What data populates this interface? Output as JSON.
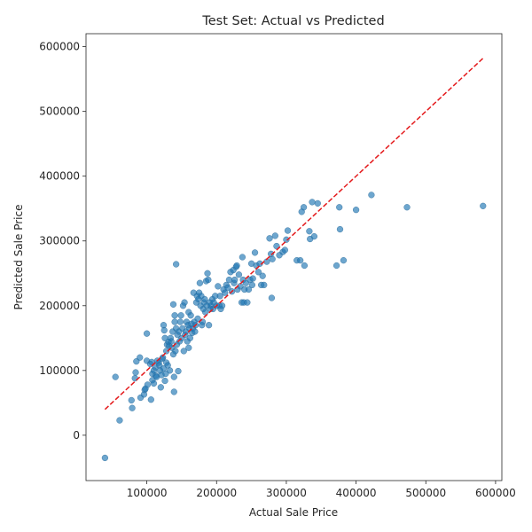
{
  "chart_data": {
    "type": "scatter",
    "title": "Test Set: Actual vs Predicted",
    "xlabel": "Actual Sale Price",
    "ylabel": "Predicted Sale Price",
    "xlim": [
      12800,
      609000
    ],
    "ylim": [
      -70000,
      620000
    ],
    "xticks": [
      100000,
      200000,
      300000,
      400000,
      500000,
      600000
    ],
    "yticks": [
      0,
      100000,
      200000,
      300000,
      400000,
      500000,
      600000
    ],
    "xtick_labels": [
      "100000",
      "200000",
      "300000",
      "400000",
      "500000",
      "600000"
    ],
    "ytick_labels": [
      "0",
      "100000",
      "200000",
      "300000",
      "400000",
      "500000",
      "600000"
    ],
    "grid": false,
    "reference_line": {
      "from": [
        40000,
        40000
      ],
      "to": [
        582000,
        582000
      ],
      "color": "#e41a1c",
      "style": "dashed"
    },
    "point_color": "#1f77b4",
    "points": [
      [
        40000,
        -35000
      ],
      [
        61000,
        23000
      ],
      [
        55000,
        90000
      ],
      [
        78000,
        54000
      ],
      [
        79000,
        42000
      ],
      [
        83000,
        88000
      ],
      [
        84000,
        97000
      ],
      [
        85000,
        114000
      ],
      [
        90000,
        120000
      ],
      [
        91000,
        58000
      ],
      [
        96000,
        63000
      ],
      [
        97000,
        70000
      ],
      [
        98000,
        72000
      ],
      [
        100000,
        157000
      ],
      [
        100000,
        115000
      ],
      [
        101000,
        78000
      ],
      [
        105000,
        110000
      ],
      [
        106000,
        55000
      ],
      [
        107000,
        113000
      ],
      [
        108000,
        85000
      ],
      [
        108000,
        95000
      ],
      [
        110000,
        100000
      ],
      [
        110000,
        80000
      ],
      [
        112000,
        105000
      ],
      [
        113000,
        92000
      ],
      [
        114000,
        90000
      ],
      [
        115000,
        115000
      ],
      [
        117000,
        112000
      ],
      [
        118000,
        108000
      ],
      [
        119000,
        100000
      ],
      [
        120000,
        74000
      ],
      [
        121000,
        93000
      ],
      [
        122000,
        118000
      ],
      [
        123000,
        120000
      ],
      [
        124000,
        103000
      ],
      [
        124000,
        170000
      ],
      [
        125000,
        162000
      ],
      [
        126000,
        150000
      ],
      [
        126000,
        84000
      ],
      [
        127000,
        95000
      ],
      [
        128000,
        112000
      ],
      [
        128000,
        130000
      ],
      [
        129000,
        140000
      ],
      [
        130000,
        108000
      ],
      [
        131000,
        144000
      ],
      [
        132000,
        138000
      ],
      [
        133000,
        100000
      ],
      [
        134000,
        150000
      ],
      [
        135000,
        145000
      ],
      [
        136000,
        135000
      ],
      [
        137000,
        160000
      ],
      [
        138000,
        202000
      ],
      [
        138000,
        125000
      ],
      [
        139000,
        90000
      ],
      [
        139000,
        67000
      ],
      [
        140000,
        185000
      ],
      [
        140000,
        175000
      ],
      [
        141000,
        130000
      ],
      [
        142000,
        264000
      ],
      [
        142000,
        165000
      ],
      [
        143000,
        140000
      ],
      [
        144000,
        155000
      ],
      [
        145000,
        99000
      ],
      [
        146000,
        160000
      ],
      [
        147000,
        145000
      ],
      [
        148000,
        175000
      ],
      [
        149000,
        185000
      ],
      [
        150000,
        150000
      ],
      [
        151000,
        165000
      ],
      [
        152000,
        200000
      ],
      [
        153000,
        130000
      ],
      [
        154000,
        205000
      ],
      [
        155000,
        155000
      ],
      [
        156000,
        160000
      ],
      [
        157000,
        175000
      ],
      [
        158000,
        145000
      ],
      [
        159000,
        170000
      ],
      [
        160000,
        190000
      ],
      [
        160000,
        135000
      ],
      [
        161000,
        165000
      ],
      [
        162000,
        150000
      ],
      [
        163000,
        185000
      ],
      [
        164000,
        172000
      ],
      [
        165000,
        158000
      ],
      [
        166000,
        165000
      ],
      [
        167000,
        220000
      ],
      [
        168000,
        175000
      ],
      [
        169000,
        160000
      ],
      [
        170000,
        170000
      ],
      [
        171000,
        205000
      ],
      [
        172000,
        215000
      ],
      [
        173000,
        180000
      ],
      [
        174000,
        210000
      ],
      [
        175000,
        220000
      ],
      [
        176000,
        235000
      ],
      [
        177000,
        200000
      ],
      [
        178000,
        215000
      ],
      [
        179000,
        170000
      ],
      [
        180000,
        175000
      ],
      [
        181000,
        195000
      ],
      [
        182000,
        205000
      ],
      [
        183000,
        210000
      ],
      [
        184000,
        190000
      ],
      [
        185000,
        238000
      ],
      [
        186000,
        200000
      ],
      [
        187000,
        250000
      ],
      [
        188000,
        240000
      ],
      [
        189000,
        170000
      ],
      [
        190000,
        205000
      ],
      [
        191000,
        195000
      ],
      [
        192000,
        200000
      ],
      [
        194000,
        210000
      ],
      [
        195000,
        195000
      ],
      [
        196000,
        205000
      ],
      [
        198000,
        215000
      ],
      [
        200000,
        200000
      ],
      [
        202000,
        230000
      ],
      [
        204000,
        200000
      ],
      [
        205000,
        215000
      ],
      [
        206000,
        195000
      ],
      [
        208000,
        200000
      ],
      [
        210000,
        225000
      ],
      [
        212000,
        220000
      ],
      [
        214000,
        232000
      ],
      [
        216000,
        228000
      ],
      [
        218000,
        240000
      ],
      [
        220000,
        252000
      ],
      [
        222000,
        222000
      ],
      [
        224000,
        255000
      ],
      [
        225000,
        235000
      ],
      [
        226000,
        240000
      ],
      [
        228000,
        260000
      ],
      [
        229000,
        262000
      ],
      [
        230000,
        225000
      ],
      [
        232000,
        248000
      ],
      [
        234000,
        230000
      ],
      [
        236000,
        205000
      ],
      [
        237000,
        275000
      ],
      [
        238000,
        240000
      ],
      [
        239000,
        205000
      ],
      [
        240000,
        225000
      ],
      [
        242000,
        235000
      ],
      [
        244000,
        205000
      ],
      [
        246000,
        225000
      ],
      [
        248000,
        240000
      ],
      [
        250000,
        265000
      ],
      [
        251000,
        232000
      ],
      [
        252000,
        242000
      ],
      [
        255000,
        282000
      ],
      [
        257000,
        262000
      ],
      [
        260000,
        252000
      ],
      [
        262000,
        265000
      ],
      [
        264000,
        232000
      ],
      [
        266000,
        246000
      ],
      [
        268000,
        232000
      ],
      [
        272000,
        268000
      ],
      [
        276000,
        304000
      ],
      [
        278000,
        280000
      ],
      [
        279000,
        212000
      ],
      [
        280000,
        272000
      ],
      [
        284000,
        308000
      ],
      [
        286000,
        292000
      ],
      [
        290000,
        278000
      ],
      [
        295000,
        283000
      ],
      [
        298000,
        286000
      ],
      [
        300000,
        302000
      ],
      [
        302000,
        316000
      ],
      [
        315000,
        270000
      ],
      [
        320000,
        270000
      ],
      [
        322000,
        345000
      ],
      [
        325000,
        352000
      ],
      [
        326000,
        262000
      ],
      [
        333000,
        315000
      ],
      [
        334000,
        303000
      ],
      [
        337000,
        360000
      ],
      [
        340000,
        307000
      ],
      [
        345000,
        358000
      ],
      [
        372000,
        262000
      ],
      [
        376000,
        352000
      ],
      [
        377000,
        318000
      ],
      [
        382000,
        270000
      ],
      [
        400000,
        348000
      ],
      [
        422000,
        371000
      ],
      [
        473000,
        352000
      ],
      [
        582000,
        354000
      ]
    ]
  }
}
